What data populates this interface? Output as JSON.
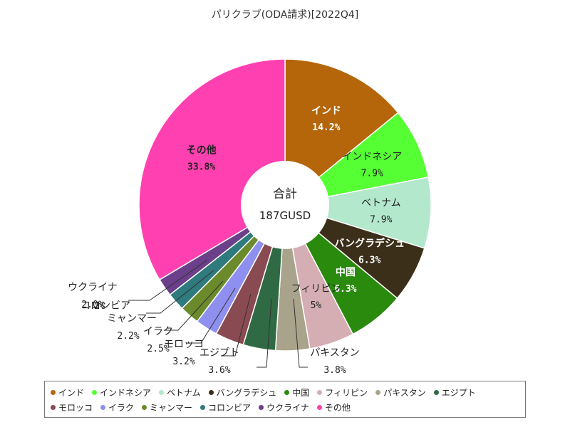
{
  "chart_data": {
    "type": "pie",
    "title": "パリクラブ(ODA請求)[2022Q4]",
    "center_label": "合計",
    "center_value": "187GUSD",
    "slices": [
      {
        "name": "インド",
        "value": 14.2,
        "label": "14.2%",
        "color": "#b5650a"
      },
      {
        "name": "インドネシア",
        "value": 7.9,
        "label": "7.9%",
        "color": "#55ff33"
      },
      {
        "name": "ベトナム",
        "value": 7.9,
        "label": "7.9%",
        "color": "#b3e8cc"
      },
      {
        "name": "バングラデシュ",
        "value": 6.3,
        "label": "6.3%",
        "color": "#3b2f1a"
      },
      {
        "name": "中国",
        "value": 6.3,
        "label": "6.3%",
        "color": "#2a8a0e"
      },
      {
        "name": "フィリピン",
        "value": 5,
        "label": "5%",
        "color": "#d4aeb3"
      },
      {
        "name": "パキスタン",
        "value": 3.8,
        "label": "3.8%",
        "color": "#a9a38b"
      },
      {
        "name": "エジプト",
        "value": 3.6,
        "label": "3.6%",
        "color": "#2f6a45"
      },
      {
        "name": "モロッコ",
        "value": 3.2,
        "label": "3.2%",
        "color": "#8a4a52"
      },
      {
        "name": "イラク",
        "value": 2.5,
        "label": "2.5%",
        "color": "#8f8ff0"
      },
      {
        "name": "ミャンマー",
        "value": 2.2,
        "label": "2.2%",
        "color": "#6a8a2c"
      },
      {
        "name": "コロンビア",
        "value": 2,
        "label": "2%",
        "color": "#2e7a7d"
      },
      {
        "name": "ウクライナ",
        "value": 2,
        "label": "2.0%",
        "color": "#6b3f8a"
      },
      {
        "name": "その他",
        "value": 33.8,
        "label": "33.8%",
        "color": "#ff40b0"
      }
    ],
    "legend_position": "bottom"
  }
}
